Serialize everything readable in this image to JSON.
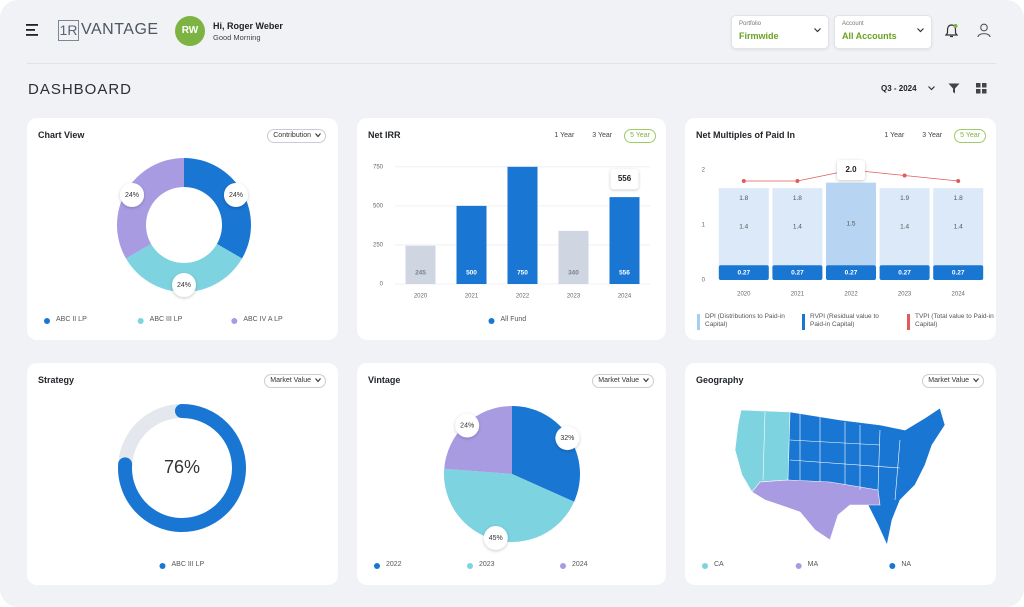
{
  "header": {
    "logo_mark": "1R",
    "brand": "VANTAGE",
    "initials": "RW",
    "greeting": "Hi, Roger Weber",
    "subgreeting": "Good Morning",
    "portfolio_label": "Portfolio",
    "portfolio": "Firmwide",
    "account_label": "Account",
    "account": "All Accounts"
  },
  "page": {
    "title": "DASHBOARD",
    "period": "Q3 - 2024"
  },
  "chart_data": [
    {
      "type": "donut",
      "title": "Chart View",
      "control": "Contribution",
      "categories": [
        "ABC II LP",
        "ABC III LP",
        "ABC IV A LP"
      ],
      "values": [
        24,
        24,
        24
      ],
      "value_labels": [
        "24%",
        "24%",
        "24%"
      ],
      "colors": [
        "#1976d2",
        "#7dd3e0",
        "#a99be2"
      ]
    },
    {
      "type": "bar",
      "title": "Net IRR",
      "tabs": [
        "1 Year",
        "3 Year",
        "5 Year"
      ],
      "active_tab": 2,
      "categories": [
        "2020",
        "2021",
        "2022",
        "2023",
        "2024"
      ],
      "series": [
        {
          "name": "All Fund",
          "color": "#1976d2",
          "values": [
            245,
            500,
            750,
            340,
            556
          ]
        }
      ],
      "bar_colors": [
        "#cfd5e1",
        "#1976d2",
        "#1976d2",
        "#cfd5e1",
        "#1976d2"
      ],
      "ylim": [
        0,
        800
      ],
      "yticks": [
        0,
        250,
        500,
        750
      ],
      "grid": true,
      "highlight": 4
    },
    {
      "type": "stacked-bar-line",
      "title": "Net Multiples of Paid In",
      "tabs": [
        "1 Year",
        "3 Year",
        "5 Year"
      ],
      "active_tab": 2,
      "categories": [
        "2020",
        "2021",
        "2022",
        "2023",
        "2024"
      ],
      "series": [
        {
          "name": "DPI (Distributions to Paid-in Capital)",
          "color": "#1976d2",
          "legend_color": "#a9cdf0",
          "values": [
            0.27,
            0.27,
            0.27,
            0.27,
            0.27
          ]
        },
        {
          "name": "RVPI (Residual value to Paid-in Capital)",
          "color": "#dce9f8",
          "legend_color": "#1976d2",
          "values": [
            1.4,
            1.4,
            1.5,
            1.4,
            1.4
          ]
        },
        {
          "name": "TVPI (Total value to Paid-in Capital)",
          "color": "#e25b5b",
          "kind": "line",
          "values": [
            1.8,
            1.8,
            2.0,
            1.9,
            1.8
          ],
          "value_labels": [
            "1.8",
            "1.8",
            "2.0",
            "1.9",
            "1.8"
          ]
        }
      ],
      "highlight_color": "#b7d4f2",
      "ylim": [
        0,
        2.2
      ],
      "yticks": [
        0,
        1,
        2
      ],
      "grid": false,
      "highlight": 2
    },
    {
      "type": "gauge",
      "title": "Strategy",
      "control": "Market Value",
      "categories": [
        "ABC III LP"
      ],
      "values": [
        76
      ],
      "value_labels": [
        "76%"
      ],
      "ylim": [
        0,
        100
      ],
      "color": "#1976d2",
      "track_color": "#e4e7ed"
    },
    {
      "type": "pie",
      "title": "Vintage",
      "control": "Market Value",
      "categories": [
        "2022",
        "2023",
        "2024"
      ],
      "values": [
        32,
        45,
        24
      ],
      "value_labels": [
        "32%",
        "45%",
        "24%"
      ],
      "colors": [
        "#1976d2",
        "#7dd3e0",
        "#a99be2"
      ]
    },
    {
      "type": "map",
      "title": "Geography",
      "control": "Market Value",
      "categories": [
        "CA",
        "MA",
        "NA"
      ],
      "colors": [
        "#7dd3e0",
        "#a99be2",
        "#1976d2"
      ]
    }
  ]
}
